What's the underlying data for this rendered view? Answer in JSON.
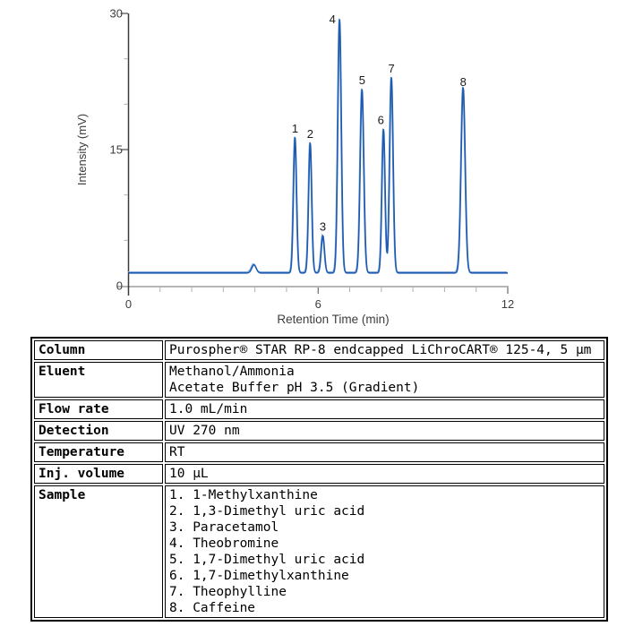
{
  "chart": {
    "colors": {
      "trace": "#1e5bb0",
      "trace_secondary": "#7fa8dc",
      "axis": "#3a3a3a",
      "x_axis_line": "#b6b6b6",
      "major_tick": "#4a4a4a",
      "minor_tick": "#b0b0b0",
      "tick_label": "#3d3d3d",
      "peak_label": "#1a1a1a"
    }
  },
  "chart_data": {
    "type": "line",
    "title": "",
    "xlabel": "Retention Time (min)",
    "ylabel": "Intensity (mV)",
    "xlim": [
      0,
      12
    ],
    "ylim": [
      0,
      30
    ],
    "x_major_ticks": [
      0,
      6,
      12
    ],
    "x_minor_tick_step": 1,
    "y_major_ticks": [
      0,
      15,
      30
    ],
    "y_minor_tick_step": 5,
    "grid": false,
    "legend": "none",
    "baseline_mv": 1.4,
    "peaks": [
      {
        "label": "1",
        "rt_min": 5.27,
        "apex_mv": 16.3,
        "sigma_min": 0.05,
        "label_dx": 0,
        "label_dy": 0
      },
      {
        "label": "2",
        "rt_min": 5.75,
        "apex_mv": 15.7,
        "sigma_min": 0.05,
        "label_dx": 0,
        "label_dy": 0
      },
      {
        "label": "3",
        "rt_min": 6.15,
        "apex_mv": 5.5,
        "sigma_min": 0.052,
        "label_dx": 0,
        "label_dy": 0
      },
      {
        "label": "4",
        "rt_min": 6.68,
        "apex_mv": 29.3,
        "sigma_min": 0.055,
        "label_dx": -8,
        "label_dy": 10
      },
      {
        "label": "5",
        "rt_min": 7.39,
        "apex_mv": 21.6,
        "sigma_min": 0.058,
        "label_dx": 0,
        "label_dy": 0
      },
      {
        "label": "6",
        "rt_min": 8.07,
        "apex_mv": 17.2,
        "sigma_min": 0.05,
        "label_dx": -3,
        "label_dy": 0
      },
      {
        "label": "7",
        "rt_min": 8.32,
        "apex_mv": 22.9,
        "sigma_min": 0.055,
        "label_dx": 0,
        "label_dy": 0
      },
      {
        "label": "8",
        "rt_min": 10.59,
        "apex_mv": 21.8,
        "sigma_min": 0.065,
        "label_dx": 0,
        "label_dy": 4
      }
    ],
    "minor_features": [
      {
        "rt_min": 3.97,
        "apex_mv": 2.3,
        "sigma_min": 0.07
      }
    ]
  },
  "table": {
    "rows": [
      {
        "label": "Column",
        "value_lines": [
          "Purospher® STAR RP-8 endcapped LiChroCART® 125-4, 5 μm"
        ]
      },
      {
        "label": "Eluent",
        "value_lines": [
          "Methanol/Ammonia",
          "Acetate Buffer pH 3.5 (Gradient)"
        ]
      },
      {
        "label": "Flow rate",
        "value_lines": [
          "1.0 mL/min"
        ]
      },
      {
        "label": "Detection",
        "value_lines": [
          "UV 270 nm"
        ]
      },
      {
        "label": "Temperature",
        "value_lines": [
          "RT"
        ]
      },
      {
        "label": "Inj. volume",
        "value_lines": [
          "10 μL"
        ]
      },
      {
        "label": "Sample",
        "value_lines": [
          "1. 1-Methylxanthine",
          "2. 1,3-Dimethyl uric acid",
          "3. Paracetamol",
          "4. Theobromine",
          "5. 1,7-Dimethyl uric acid",
          "6. 1,7-Dimethylxanthine",
          "7. Theophylline",
          "8. Caffeine"
        ]
      }
    ]
  }
}
